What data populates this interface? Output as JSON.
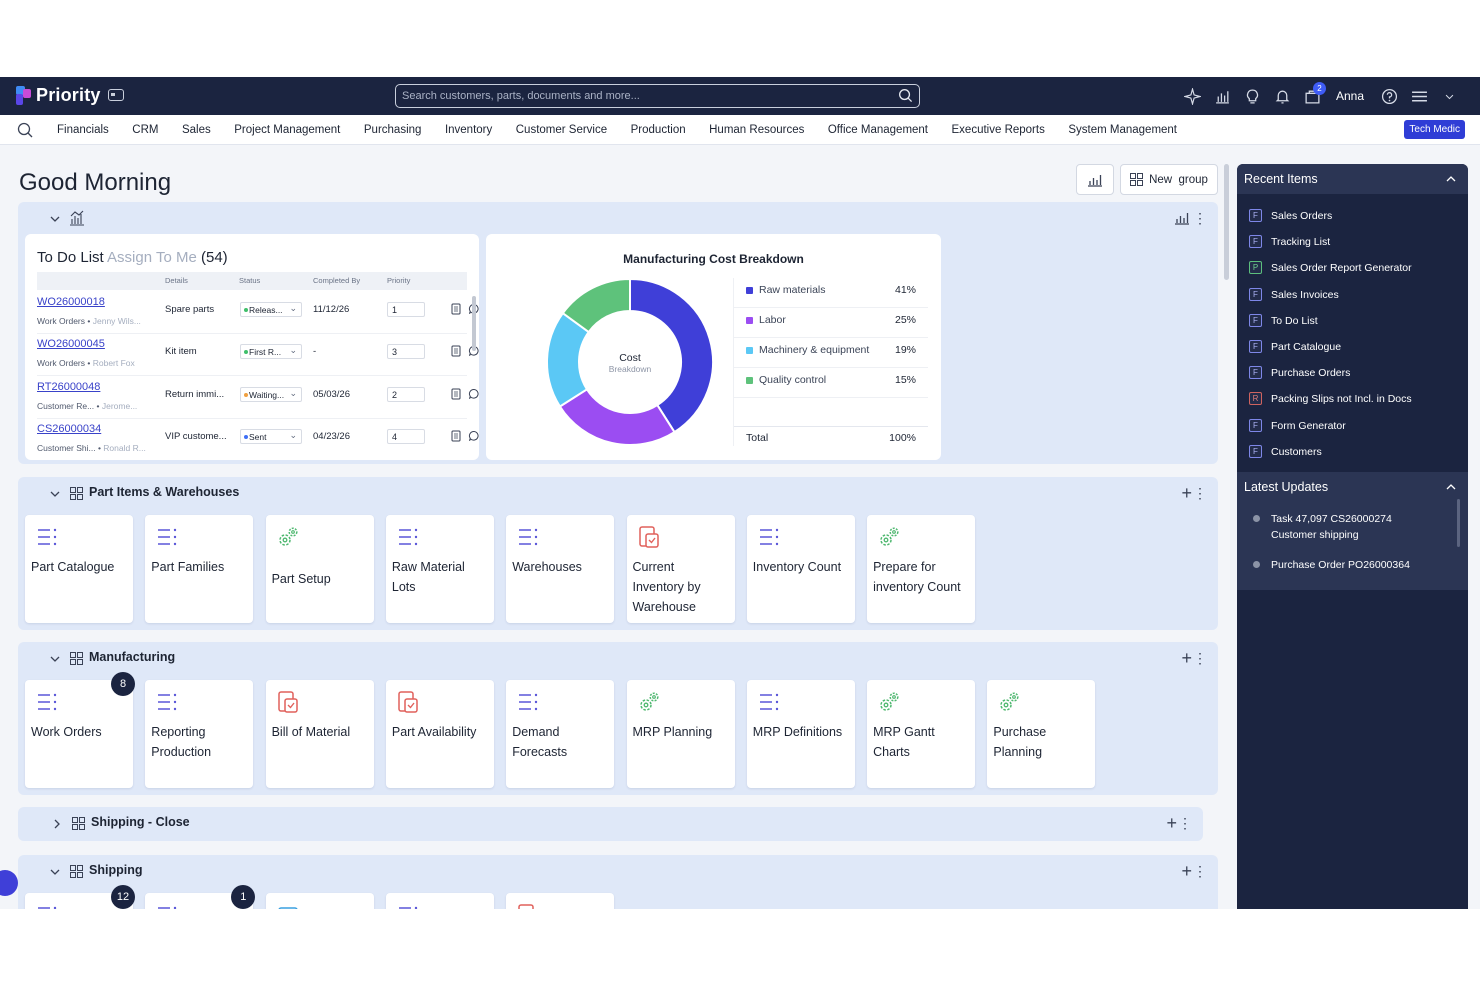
{
  "app": {
    "name": "Priority"
  },
  "search": {
    "placeholder": "Search customers, parts, documents and more..."
  },
  "user": {
    "name": "Anna",
    "cart_count": "2"
  },
  "menu": [
    "Financials",
    "CRM",
    "Sales",
    "Project Management",
    "Purchasing",
    "Inventory",
    "Customer Service",
    "Production",
    "Human Resources",
    "Office Management",
    "Executive Reports",
    "System Management"
  ],
  "tech_medic": "Tech Medic",
  "greeting": "Good Morning",
  "new_group": "New  group",
  "todo": {
    "title": "To Do List",
    "subtitle": "Assign To Me",
    "count": "(54)",
    "headers": {
      "details": "Details",
      "status": "Status",
      "completed_by": "Completed By",
      "priority": "Priority"
    },
    "rows": [
      {
        "id": "WO26000018",
        "type": "Work Orders",
        "person": "Jenny Wils...",
        "details": "Spare parts",
        "status": "Releas...",
        "status_color": "#3fbf6a",
        "date": "11/12/26",
        "priority": "1"
      },
      {
        "id": "WO26000045",
        "type": "Work Orders",
        "person": "Robert Fox",
        "details": "Kit item",
        "status": "First R...",
        "status_color": "#3fbf6a",
        "date": "-",
        "priority": "3"
      },
      {
        "id": "RT26000048",
        "type": "Customer Re...",
        "person": "Jerome...",
        "details": "Return immi...",
        "status": "Waiting...",
        "status_color": "#f0a040",
        "date": "05/03/26",
        "priority": "2"
      },
      {
        "id": "CS26000034",
        "type": "Customer Shi...",
        "person": "Ronald R...",
        "details": "VIP custome...",
        "status": "Sent",
        "status_color": "#3f6ff5",
        "date": "04/23/26",
        "priority": "4"
      }
    ]
  },
  "chart_data": {
    "type": "pie",
    "title": "Manufacturing Cost Breakdown",
    "center_label": "Cost",
    "center_sublabel": "Breakdown",
    "categories": [
      "Raw materials",
      "Labor",
      "Machinery & equipment",
      "Quality control"
    ],
    "values": [
      41,
      25,
      19,
      15
    ],
    "labels": [
      "41%",
      "25%",
      "19%",
      "15%"
    ],
    "colors": [
      "#3f3fd8",
      "#9b4df2",
      "#5bc8f5",
      "#5ec27b"
    ],
    "total_label": "Total",
    "total_value": "100%",
    "legend": "right"
  },
  "sections": {
    "part_items": {
      "title": "Part Items & Warehouses",
      "tiles": [
        {
          "label": "Part Catalogue",
          "icon": "list-icon"
        },
        {
          "label": "Part Families",
          "icon": "list-icon"
        },
        {
          "label": "Part Setup",
          "icon": "gears-icon"
        },
        {
          "label": "Raw Material Lots",
          "icon": "list-icon"
        },
        {
          "label": "Warehouses",
          "icon": "list-icon"
        },
        {
          "label": "Current Inventory by Warehouse",
          "icon": "report-icon"
        },
        {
          "label": "Inventory Count",
          "icon": "list-icon"
        },
        {
          "label": "Prepare for inventory Count",
          "icon": "gears-icon"
        }
      ]
    },
    "manufacturing": {
      "title": "Manufacturing",
      "tiles": [
        {
          "label": "Work Orders",
          "icon": "list-icon",
          "count": "8"
        },
        {
          "label": "Reporting Production",
          "icon": "list-icon"
        },
        {
          "label": "Bill of Material",
          "icon": "report-icon"
        },
        {
          "label": "Part Availability",
          "icon": "report-icon"
        },
        {
          "label": "Demand Forecasts",
          "icon": "list-icon"
        },
        {
          "label": "MRP Planning",
          "icon": "gears-icon"
        },
        {
          "label": "MRP Definitions",
          "icon": "list-icon"
        },
        {
          "label": "MRP Gantt Charts",
          "icon": "gears-icon"
        },
        {
          "label": "Purchase Planning",
          "icon": "gears-icon"
        }
      ]
    },
    "shipping_close": {
      "title": "Shipping - Close"
    },
    "shipping": {
      "title": "Shipping",
      "tiles": [
        {
          "icon": "list-icon",
          "count": "12"
        },
        {
          "icon": "list-icon",
          "count": "1"
        },
        {
          "icon": "doc-icon"
        },
        {
          "icon": "list-icon"
        },
        {
          "icon": "report-icon"
        }
      ]
    }
  },
  "recent": {
    "title": "Recent Items",
    "items": [
      {
        "label": "Sales Orders",
        "tag": "F"
      },
      {
        "label": "Tracking List",
        "tag": "F"
      },
      {
        "label": "Sales Order Report Generator",
        "tag": "P"
      },
      {
        "label": "Sales Invoices",
        "tag": "F"
      },
      {
        "label": "To Do List",
        "tag": "F"
      },
      {
        "label": "Part Catalogue",
        "tag": "F"
      },
      {
        "label": "Purchase Orders",
        "tag": "F"
      },
      {
        "label": "Packing Slips not Incl. in Docs",
        "tag": "R"
      },
      {
        "label": "Form Generator",
        "tag": "F"
      },
      {
        "label": "Customers",
        "tag": "F"
      }
    ]
  },
  "updates": {
    "title": "Latest Updates",
    "items": [
      {
        "line1": "Task 47,097 CS26000274",
        "line2": "Customer shipping"
      },
      {
        "line1": "Purchase Order PO26000364",
        "line2": ""
      }
    ]
  }
}
